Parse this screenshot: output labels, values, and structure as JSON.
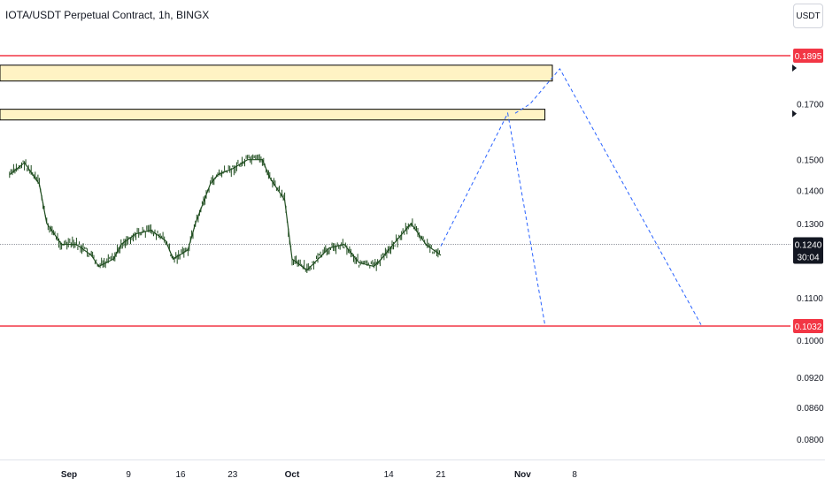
{
  "title": "IOTA/USDT Perpetual Contract, 1h, BINGX",
  "currency": "USDT",
  "colors": {
    "candle": "#1f4d1f",
    "level_line": "#f23645",
    "zone_fill": "#fff3c4",
    "zone_stroke": "#000000",
    "projection": "#2962ff",
    "current_line": "#9598a1",
    "tag_bg": "#131722"
  },
  "chart_data": {
    "type": "line",
    "title": "IOTA/USDT Perpetual Contract, 1h, BINGX",
    "y_scale": "log",
    "ylim": [
      0.0775,
      0.205
    ],
    "y_ticks": [
      "0.1700",
      "0.1500",
      "0.1400",
      "0.1300",
      "0.1100",
      "0.1000",
      "0.0920",
      "0.0860",
      "0.0800"
    ],
    "x_ticks": [
      "Sep",
      "9",
      "16",
      "23",
      "Oct",
      "14",
      "21",
      "Nov",
      "8"
    ],
    "x_tick_dates": [
      "2024-09-01",
      "2024-09-09",
      "2024-09-16",
      "2024-09-23",
      "2024-10-01",
      "2024-10-14",
      "2024-10-21",
      "2024-11-01",
      "2024-11-08"
    ],
    "series": [
      {
        "values_date": [
          "2024-08-24",
          "2024-08-26",
          "2024-08-28",
          "2024-08-29",
          "2024-08-31",
          "2024-09-02",
          "2024-09-04",
          "2024-09-05",
          "2024-09-07",
          "2024-09-08",
          "2024-09-10",
          "2024-09-12",
          "2024-09-14",
          "2024-09-15",
          "2024-09-17",
          "2024-09-18",
          "2024-09-20",
          "2024-09-21",
          "2024-09-23",
          "2024-09-25",
          "2024-09-27",
          "2024-09-28",
          "2024-09-30",
          "2024-10-01",
          "2024-10-03",
          "2024-10-05",
          "2024-10-06",
          "2024-10-08",
          "2024-10-10",
          "2024-10-12",
          "2024-10-13",
          "2024-10-15",
          "2024-10-17",
          "2024-10-19",
          "2024-10-21"
        ],
        "values": [
          0.145,
          0.149,
          0.142,
          0.13,
          0.124,
          0.124,
          0.121,
          0.118,
          0.12,
          0.124,
          0.127,
          0.128,
          0.125,
          0.12,
          0.1225,
          0.13,
          0.142,
          0.145,
          0.147,
          0.15,
          0.15,
          0.144,
          0.137,
          0.12,
          0.117,
          0.121,
          0.123,
          0.124,
          0.119,
          0.118,
          0.12,
          0.125,
          0.13,
          0.124,
          0.121
        ]
      }
    ],
    "horizontal_levels": [
      {
        "value": 0.1895,
        "label": "0.1895"
      },
      {
        "value": 0.1032,
        "label": "0.1032"
      }
    ],
    "zones": [
      {
        "date_start": "2024-08-20",
        "date_end": "2024-11-05",
        "price_low": 0.179,
        "price_high": 0.1855
      },
      {
        "date_start": "2024-08-20",
        "date_end": "2024-11-04",
        "price_low": 0.164,
        "price_high": 0.168
      }
    ],
    "projection_path": [
      {
        "date": "2024-10-21",
        "price": 0.1235
      },
      {
        "date": "2024-10-30",
        "price": 0.1665
      },
      {
        "date": "2024-11-04",
        "price": 0.1035
      },
      {
        "date": "2024-11-04",
        "price": 0.1035
      },
      {
        "date": "2024-10-31",
        "price": 0.1665
      },
      {
        "date": "2024-11-02",
        "price": 0.17
      },
      {
        "date": "2024-11-06",
        "price": 0.184
      },
      {
        "date": "2024-11-25",
        "price": 0.1035
      }
    ],
    "current_price": {
      "value": 0.124,
      "label": "0.1240",
      "countdown": "30:04"
    },
    "grid": false
  }
}
